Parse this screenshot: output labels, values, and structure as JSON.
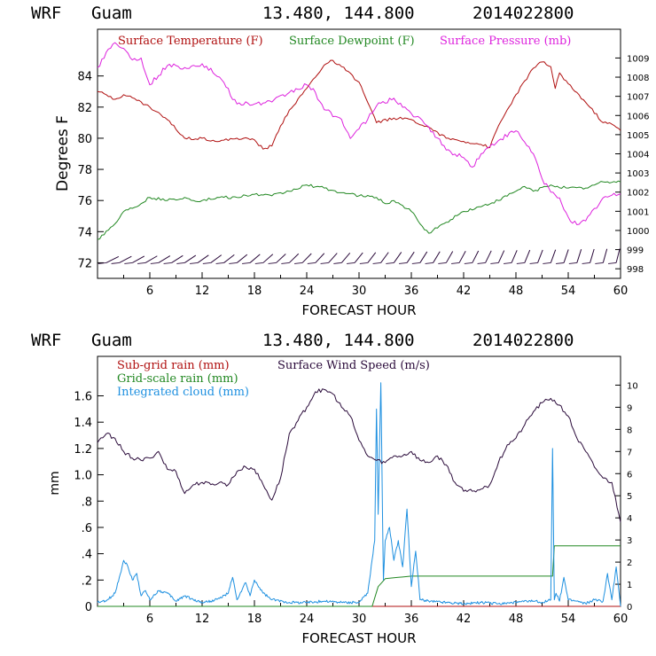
{
  "chart_data": [
    {
      "type": "line",
      "header": {
        "model": "WRF",
        "location": "Guam",
        "coords": "13.480, 144.800",
        "date": "2014022800"
      },
      "xlabel": "FORECAST HOUR",
      "ylabel": "Degrees F",
      "xlim": [
        0,
        60
      ],
      "ylim": [
        71,
        87
      ],
      "y2lim": [
        997.5,
        1010.5
      ],
      "xticks": [
        "6",
        "12",
        "18",
        "24",
        "30",
        "36",
        "42",
        "48",
        "54",
        "60"
      ],
      "yticks": [
        "72",
        "74",
        "76",
        "78",
        "80",
        "82",
        "84"
      ],
      "y2ticks": [
        "998",
        "999",
        "1000",
        "1001",
        "1002",
        "1003",
        "1004",
        "1005",
        "1006",
        "1007",
        "1008",
        "1009"
      ],
      "legend": [
        "Surface Temperature (F)",
        "Surface Dewpoint (F)",
        "Surface Pressure (mb)"
      ],
      "colors": {
        "temperature": "#b01010",
        "dewpoint": "#228822",
        "pressure": "#dd22dd",
        "wind": "#2a0a3a"
      },
      "series": [
        {
          "name": "Surface Temperature (F)",
          "axis": "left",
          "x": [
            0,
            1,
            2,
            3,
            4,
            6,
            8,
            10,
            12,
            14,
            16,
            18,
            19,
            20,
            21,
            22,
            24,
            26,
            27,
            28,
            30,
            31,
            32,
            34,
            36,
            38,
            40,
            42,
            44,
            45,
            46,
            48,
            50,
            51,
            52,
            52.5,
            53,
            54,
            56,
            58,
            59,
            60
          ],
          "values": [
            83.0,
            82.8,
            82.5,
            82.8,
            82.6,
            82.0,
            81.2,
            80.0,
            80.0,
            79.8,
            80.0,
            79.9,
            79.3,
            79.5,
            80.8,
            81.8,
            83.2,
            84.7,
            85.0,
            84.6,
            83.6,
            82.3,
            81.0,
            81.3,
            81.2,
            80.7,
            80.0,
            79.8,
            79.6,
            79.4,
            80.8,
            82.8,
            84.5,
            84.9,
            84.6,
            83.2,
            84.2,
            83.5,
            82.3,
            81.0,
            80.9,
            80.5
          ]
        },
        {
          "name": "Surface Dewpoint (F)",
          "axis": "left",
          "x": [
            0,
            2,
            3,
            5,
            6,
            8,
            10,
            11,
            12,
            14,
            16,
            18,
            20,
            22,
            24,
            26,
            28,
            30,
            32,
            33,
            34,
            36,
            37,
            38,
            40,
            42,
            44,
            46,
            48,
            49,
            50,
            52,
            54,
            56,
            58,
            60
          ],
          "values": [
            73.5,
            74.5,
            75.3,
            75.8,
            76.2,
            76.0,
            76.2,
            76.0,
            76.0,
            76.2,
            76.2,
            76.4,
            76.3,
            76.6,
            77.0,
            76.8,
            76.5,
            76.3,
            76.2,
            75.8,
            76.0,
            75.3,
            74.5,
            73.9,
            74.6,
            75.3,
            75.6,
            76.0,
            76.6,
            76.9,
            76.6,
            77.0,
            76.8,
            76.8,
            77.2,
            77.2
          ]
        },
        {
          "name": "Surface Pressure (mb)",
          "axis": "right",
          "x": [
            0,
            1,
            2,
            3,
            4,
            5,
            6,
            8,
            10,
            12,
            14,
            16,
            18,
            20,
            22,
            24,
            25,
            26,
            28,
            29,
            30,
            31,
            32,
            34,
            36,
            38,
            40,
            42,
            43,
            44,
            46,
            48,
            50,
            51,
            52,
            53,
            54,
            55,
            56,
            58,
            60
          ],
          "values": [
            1008.5,
            1009.3,
            1009.8,
            1009.5,
            1008.9,
            1009.0,
            1007.6,
            1008.6,
            1008.5,
            1008.7,
            1008.0,
            1006.6,
            1006.6,
            1006.7,
            1007.2,
            1007.6,
            1007.2,
            1006.3,
            1005.8,
            1004.8,
            1005.3,
            1005.8,
            1006.5,
            1006.9,
            1006.1,
            1005.4,
            1004.2,
            1003.8,
            1003.3,
            1004.0,
            1004.7,
            1005.2,
            1004.0,
            1002.7,
            1002.0,
            1001.7,
            1000.7,
            1000.3,
            1000.5,
            1001.7,
            1001.9
          ]
        }
      ],
      "wind_barbs": {
        "label": "Surface wind barbs",
        "x_start": 1,
        "x_end": 60,
        "step": 1.5
      }
    },
    {
      "type": "line",
      "header": {
        "model": "WRF",
        "location": "Guam",
        "coords": "13.480, 144.800",
        "date": "2014022800"
      },
      "xlabel": "FORECAST HOUR",
      "ylabel": "mm",
      "xlim": [
        0,
        60
      ],
      "ylim": [
        0,
        1.9
      ],
      "y2lim": [
        0,
        11.3
      ],
      "xticks": [
        "6",
        "12",
        "18",
        "24",
        "30",
        "36",
        "42",
        "48",
        "54",
        "60"
      ],
      "yticks": [
        "0",
        ".2",
        ".4",
        ".6",
        ".8",
        "1.0",
        "1.2",
        "1.4",
        "1.6"
      ],
      "y2ticks": [
        "0",
        "1",
        "2",
        "3",
        "4",
        "5",
        "6",
        "7",
        "8",
        "9",
        "10"
      ],
      "legend": [
        "Sub-grid rain (mm)",
        "Grid-scale rain (mm)",
        "Integrated cloud (mm)",
        "Surface Wind Speed (m/s)"
      ],
      "colors": {
        "subgrid": "#b01010",
        "gridscale": "#228822",
        "cloud": "#1e90e0",
        "wind": "#2a0a3a"
      },
      "series": [
        {
          "name": "Sub-grid rain (mm)",
          "axis": "left",
          "x": [
            0,
            60
          ],
          "values": [
            0.0,
            0.0
          ]
        },
        {
          "name": "Grid-scale rain (mm)",
          "axis": "left",
          "x": [
            0,
            31.5,
            32.2,
            33,
            36,
            52.2,
            52.4,
            60
          ],
          "values": [
            0.0,
            0.0,
            0.15,
            0.21,
            0.23,
            0.23,
            0.46,
            0.46
          ]
        },
        {
          "name": "Integrated cloud (mm)",
          "axis": "left",
          "x": [
            0,
            1,
            2,
            2.5,
            3,
            3.5,
            4,
            4.5,
            5,
            5.5,
            6,
            7,
            8,
            9,
            10,
            11,
            12,
            13,
            14,
            15,
            15.5,
            16,
            17,
            17.5,
            18,
            19,
            20,
            22,
            24,
            26,
            28,
            30,
            31,
            31.8,
            32,
            32.2,
            32.5,
            32.8,
            33,
            33.5,
            34,
            34.5,
            35,
            35.5,
            36,
            36.5,
            37,
            38,
            40,
            42,
            44,
            46,
            48,
            50,
            51,
            52,
            52.2,
            52.4,
            52.6,
            53,
            53.5,
            54,
            55,
            56,
            57,
            58,
            58.5,
            59,
            59.5,
            60
          ],
          "values": [
            0.03,
            0.04,
            0.1,
            0.22,
            0.35,
            0.3,
            0.2,
            0.25,
            0.08,
            0.12,
            0.05,
            0.12,
            0.1,
            0.04,
            0.08,
            0.05,
            0.03,
            0.04,
            0.06,
            0.1,
            0.22,
            0.05,
            0.18,
            0.08,
            0.2,
            0.1,
            0.05,
            0.03,
            0.03,
            0.04,
            0.03,
            0.03,
            0.1,
            0.5,
            1.5,
            0.7,
            1.7,
            0.2,
            0.5,
            0.6,
            0.35,
            0.5,
            0.3,
            0.74,
            0.15,
            0.42,
            0.05,
            0.04,
            0.03,
            0.02,
            0.03,
            0.02,
            0.03,
            0.04,
            0.03,
            0.05,
            1.2,
            0.05,
            0.1,
            0.04,
            0.22,
            0.05,
            0.04,
            0.02,
            0.05,
            0.04,
            0.25,
            0.05,
            0.3,
            0.0
          ]
        },
        {
          "name": "Surface Wind Speed (m/s)",
          "axis": "right",
          "x": [
            0,
            1,
            2,
            3,
            4,
            5,
            6,
            7,
            8,
            9,
            10,
            11,
            12,
            13,
            14,
            15,
            16,
            17,
            18,
            19,
            20,
            21,
            22,
            23,
            24,
            25,
            26,
            27,
            28,
            29,
            30,
            31,
            32,
            33,
            34,
            35,
            36,
            37,
            38,
            39,
            40,
            41,
            42,
            43,
            44,
            45,
            46,
            47,
            48,
            49,
            50,
            51,
            52,
            53,
            54,
            55,
            56,
            57,
            58,
            59,
            60
          ],
          "values": [
            7.4,
            7.8,
            7.6,
            7.0,
            6.7,
            6.6,
            6.7,
            7.0,
            6.2,
            6.1,
            5.1,
            5.5,
            5.6,
            5.5,
            5.6,
            5.5,
            6.1,
            6.3,
            6.2,
            5.5,
            4.8,
            5.8,
            7.8,
            8.4,
            9.0,
            9.7,
            9.8,
            9.6,
            9.0,
            8.6,
            7.5,
            6.8,
            6.6,
            6.5,
            6.8,
            6.8,
            7.0,
            6.6,
            6.5,
            6.8,
            6.4,
            5.6,
            5.2,
            5.2,
            5.3,
            5.5,
            6.5,
            7.3,
            7.6,
            8.2,
            8.8,
            9.2,
            9.4,
            9.1,
            8.6,
            7.6,
            7.0,
            6.3,
            5.8,
            5.6,
            3.8
          ]
        }
      ]
    }
  ]
}
